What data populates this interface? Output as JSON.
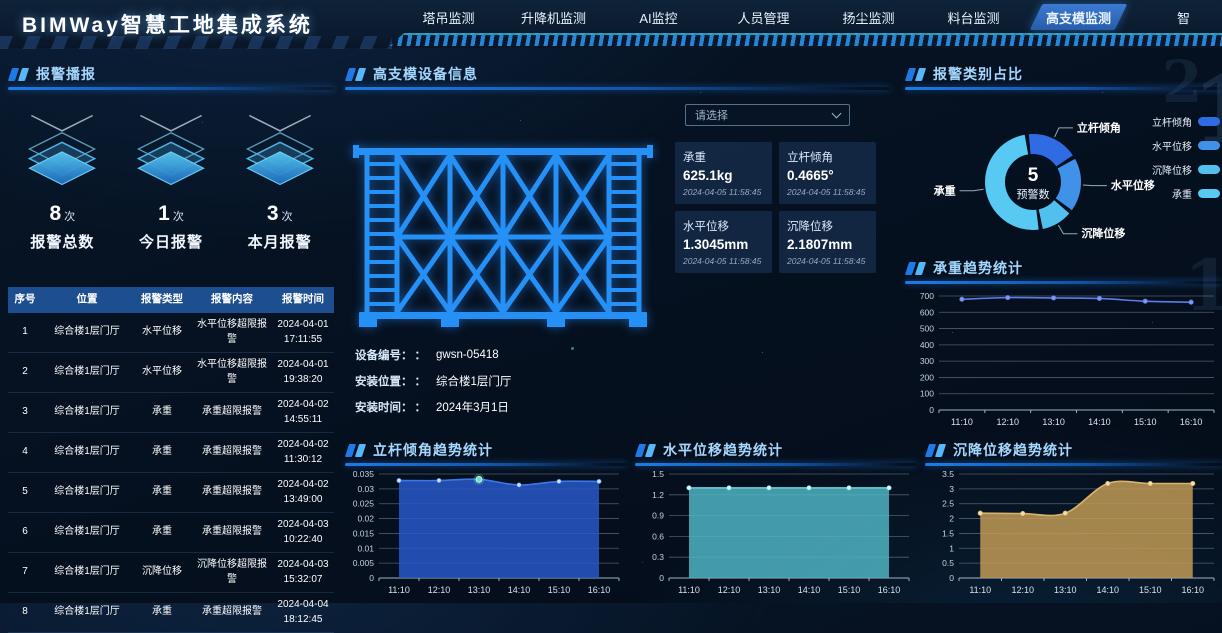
{
  "header": {
    "title": "BIMWay智慧工地集成系统",
    "tabs": [
      {
        "label": "塔吊监测",
        "active": false
      },
      {
        "label": "升降机监测",
        "active": false
      },
      {
        "label": "AI监控",
        "active": false
      },
      {
        "label": "人员管理",
        "active": false
      },
      {
        "label": "扬尘监测",
        "active": false
      },
      {
        "label": "料台监测",
        "active": false
      },
      {
        "label": "高支模监测",
        "active": true
      },
      {
        "label": "智",
        "active": false
      }
    ]
  },
  "alarm_panel": {
    "title": "报警播报",
    "stats": [
      {
        "value": "8",
        "unit": "次",
        "label": "报警总数"
      },
      {
        "value": "1",
        "unit": "次",
        "label": "今日报警"
      },
      {
        "value": "3",
        "unit": "次",
        "label": "本月报警"
      }
    ],
    "table": {
      "headers": [
        "序号",
        "位置",
        "报警类型",
        "报警内容",
        "报警时间"
      ],
      "rows": [
        [
          "1",
          "综合楼1层门厅",
          "水平位移",
          "水平位移超限报警",
          "2024-04-01 17:11:55"
        ],
        [
          "2",
          "综合楼1层门厅",
          "水平位移",
          "水平位移超限报警",
          "2024-04-01 19:38:20"
        ],
        [
          "3",
          "综合楼1层门厅",
          "承重",
          "承重超限报警",
          "2024-04-02 14:55:11"
        ],
        [
          "4",
          "综合楼1层门厅",
          "承重",
          "承重超限报警",
          "2024-04-02 11:30:12"
        ],
        [
          "5",
          "综合楼1层门厅",
          "承重",
          "承重超限报警",
          "2024-04-02 13:49:00"
        ],
        [
          "6",
          "综合楼1层门厅",
          "承重",
          "承重超限报警",
          "2024-04-03 10:22:40"
        ],
        [
          "7",
          "综合楼1层门厅",
          "沉降位移",
          "沉降位移超限报警",
          "2024-04-03 15:32:07"
        ],
        [
          "8",
          "综合楼1层门厅",
          "承重",
          "承重超限报警",
          "2024-04-04 18:12:45"
        ]
      ]
    }
  },
  "device_panel": {
    "title": "高支模设备信息",
    "select_placeholder": "请选择",
    "metrics": [
      {
        "label": "承重",
        "value": "625.1kg",
        "time": "2024-04-05 11:58:45"
      },
      {
        "label": "立杆倾角",
        "value": "0.4665°",
        "time": "2024-04-05 11:58:45"
      },
      {
        "label": "水平位移",
        "value": "1.3045mm",
        "time": "2024-04-05 11:58:45"
      },
      {
        "label": "沉降位移",
        "value": "2.1807mm",
        "time": "2024-04-05 11:58:45"
      }
    ],
    "info": [
      {
        "label": "设备编号：",
        "sep": "：",
        "value": "gwsn-05418"
      },
      {
        "label": "安装位置：",
        "sep": "：",
        "value": "综合楼1层门厅"
      },
      {
        "label": "安装时间：",
        "sep": "：",
        "value": "2024年3月1日"
      }
    ]
  },
  "chart_data": [
    {
      "type": "pie",
      "title": "报警类别占比",
      "donut": true,
      "labels": [
        "立杆倾角",
        "水平位移",
        "沉降位移",
        "承重"
      ],
      "values": [
        18,
        19,
        11,
        52
      ],
      "unit": "%",
      "colors": [
        "#2f6ce4",
        "#3f92e8",
        "#52c0ee",
        "#57c9f2"
      ],
      "center_value": "5",
      "center_label": "预警数",
      "legend_position": "right"
    },
    {
      "type": "line",
      "title": "承重趋势统计",
      "x": [
        "11:10",
        "12:10",
        "13:10",
        "14:10",
        "15:10",
        "16:10"
      ],
      "values": [
        680,
        690,
        688,
        685,
        668,
        662
      ],
      "ylim": [
        0,
        700
      ],
      "yticks": [
        0,
        100,
        200,
        300,
        400,
        500,
        600,
        700
      ],
      "color": "#5a7ee8",
      "dot_color": "#7d97f2",
      "grid": true
    },
    {
      "type": "area",
      "title": "立杆倾角趋势统计",
      "x": [
        "11:10",
        "12:10",
        "13:10",
        "14:10",
        "15:10",
        "16:10"
      ],
      "values": [
        0.0328,
        0.0328,
        0.0332,
        0.0313,
        0.0325,
        0.0325
      ],
      "ylim": [
        0,
        0.035
      ],
      "yticks": [
        0,
        0.005,
        0.01,
        0.015,
        0.02,
        0.025,
        0.03,
        0.035
      ],
      "color": "#3a78e8",
      "fill": "#2857c8",
      "dot_color": "#cfe2ff",
      "emphasis": 2,
      "grid": true
    },
    {
      "type": "area",
      "title": "水平位移趋势统计",
      "x": [
        "11:10",
        "12:10",
        "13:10",
        "14:10",
        "15:10",
        "16:10"
      ],
      "values": [
        1.3,
        1.3,
        1.3,
        1.3,
        1.3,
        1.3
      ],
      "ylim": [
        0,
        1.5
      ],
      "yticks": [
        0,
        0.3,
        0.6,
        0.9,
        1.2,
        1.5
      ],
      "color": "#6fd4dc",
      "fill": "#4fb3c1",
      "dot_color": "#e2fbfd",
      "grid": true
    },
    {
      "type": "area",
      "title": "沉降位移趋势统计",
      "x": [
        "11:10",
        "12:10",
        "13:10",
        "14:10",
        "15:10",
        "16:10"
      ],
      "values": [
        2.18,
        2.17,
        2.18,
        3.18,
        3.18,
        3.18
      ],
      "ylim": [
        0,
        3.5
      ],
      "yticks": [
        0,
        0.5,
        1,
        1.5,
        2,
        2.5,
        3,
        3.5
      ],
      "color": "#d9b36a",
      "fill": "#c09a55",
      "dot_color": "#f2dcab",
      "grid": true
    }
  ],
  "decor": {
    "watermarks": [
      "2",
      "1",
      "1"
    ]
  }
}
